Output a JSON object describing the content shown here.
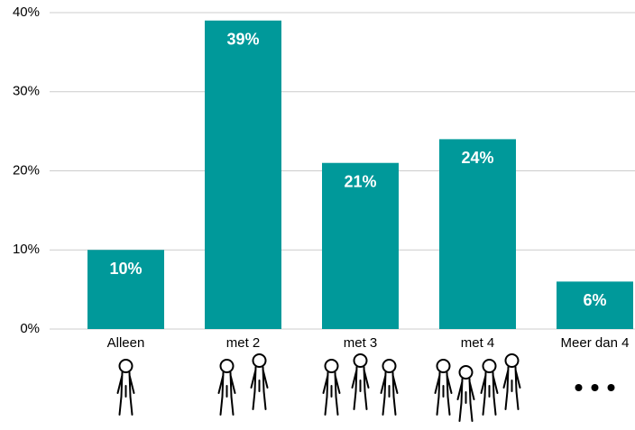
{
  "chart_data": {
    "type": "bar",
    "categories": [
      "Alleen",
      "met 2",
      "met 3",
      "met 4",
      "Meer dan 4"
    ],
    "values": [
      10,
      39,
      21,
      24,
      6
    ],
    "value_labels": [
      "10%",
      "39%",
      "21%",
      "24%",
      "6%"
    ],
    "color": "#00999a",
    "ylim": [
      0,
      40
    ],
    "yticks": [
      {
        "value": 0,
        "label": "0%"
      },
      {
        "value": 10,
        "label": "10%"
      },
      {
        "value": 20,
        "label": "20%"
      },
      {
        "value": 30,
        "label": "30%"
      },
      {
        "value": 40,
        "label": "40%"
      }
    ],
    "grid": true
  }
}
